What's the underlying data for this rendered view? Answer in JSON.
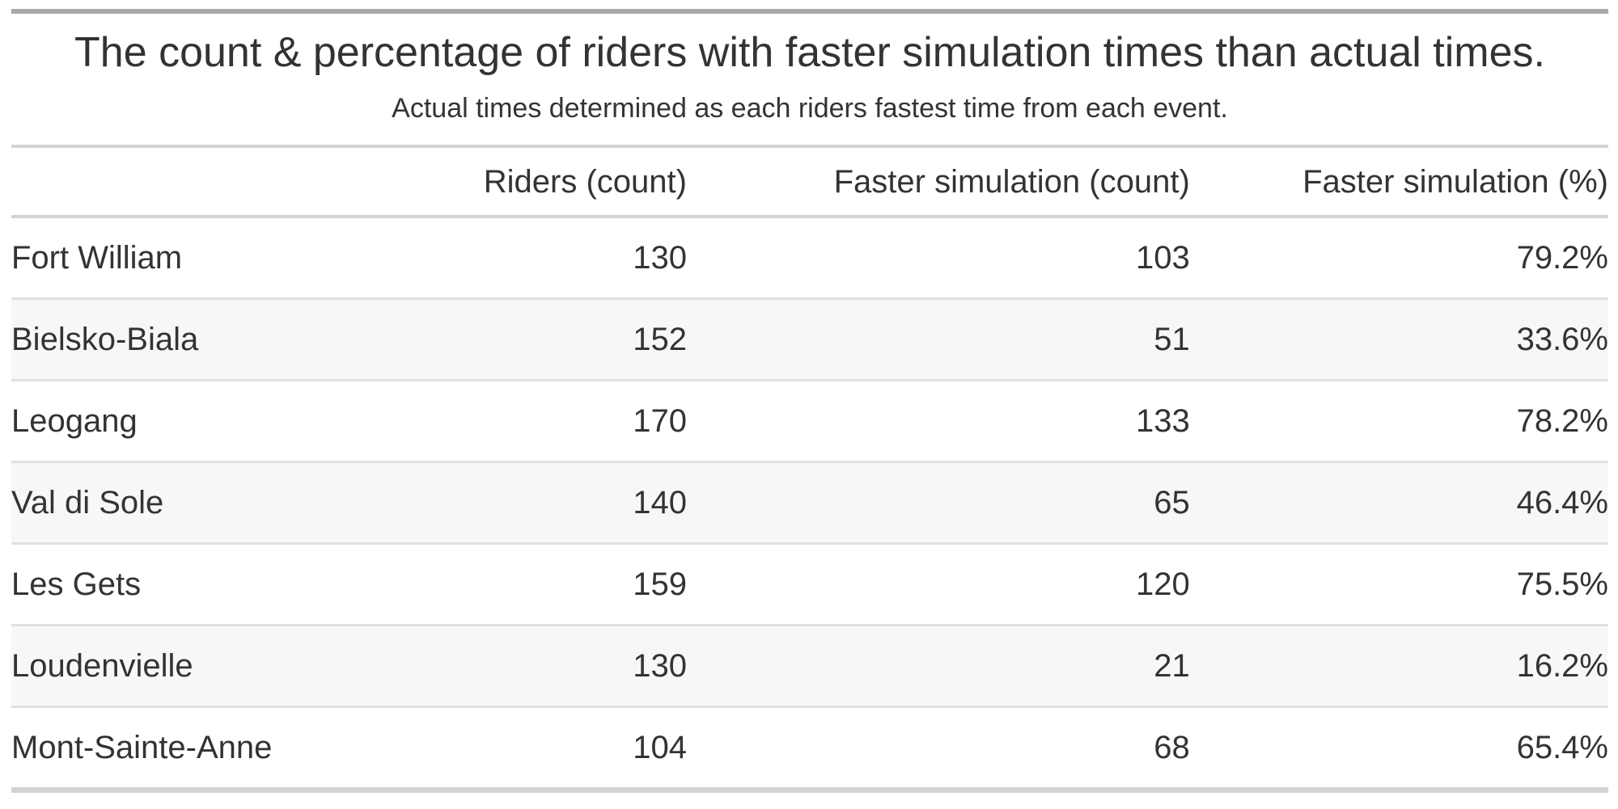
{
  "chart_data": {
    "type": "table",
    "title": "The count & percentage of riders with faster simulation times than actual times.",
    "subtitle": "Actual times determined as each riders fastest time from each event.",
    "columns": [
      "",
      "Riders (count)",
      "Faster simulation (count)",
      "Faster simulation (%)"
    ],
    "rows": [
      [
        "Fort William",
        "130",
        "103",
        "79.2%"
      ],
      [
        "Bielsko-Biala",
        "152",
        "51",
        "33.6%"
      ],
      [
        "Leogang",
        "170",
        "133",
        "78.2%"
      ],
      [
        "Val di Sole",
        "140",
        "65",
        "46.4%"
      ],
      [
        "Les Gets",
        "159",
        "120",
        "75.5%"
      ],
      [
        "Loudenvielle",
        "130",
        "21",
        "16.2%"
      ],
      [
        "Mont-Sainte-Anne",
        "104",
        "68",
        "65.4%"
      ]
    ],
    "numeric": {
      "riders_count": [
        130,
        152,
        170,
        140,
        159,
        130,
        104
      ],
      "faster_simulation_count": [
        103,
        51,
        133,
        65,
        120,
        21,
        68
      ],
      "faster_simulation_pct": [
        79.2,
        33.6,
        78.2,
        46.4,
        75.5,
        16.2,
        65.4
      ]
    },
    "layout_hints": {
      "zebra_striping": "even rows shaded",
      "value_alignment": "right",
      "stub_alignment": "left"
    }
  },
  "colors": {
    "text": "#333333",
    "background": "#FFFFFF",
    "stripe": "#F7F7F7",
    "border_top": "#A9A9A9",
    "border_bottom": "#D4D4D4",
    "rule_light": "#D3D3D3",
    "row_separator": "#E0E0E0"
  }
}
